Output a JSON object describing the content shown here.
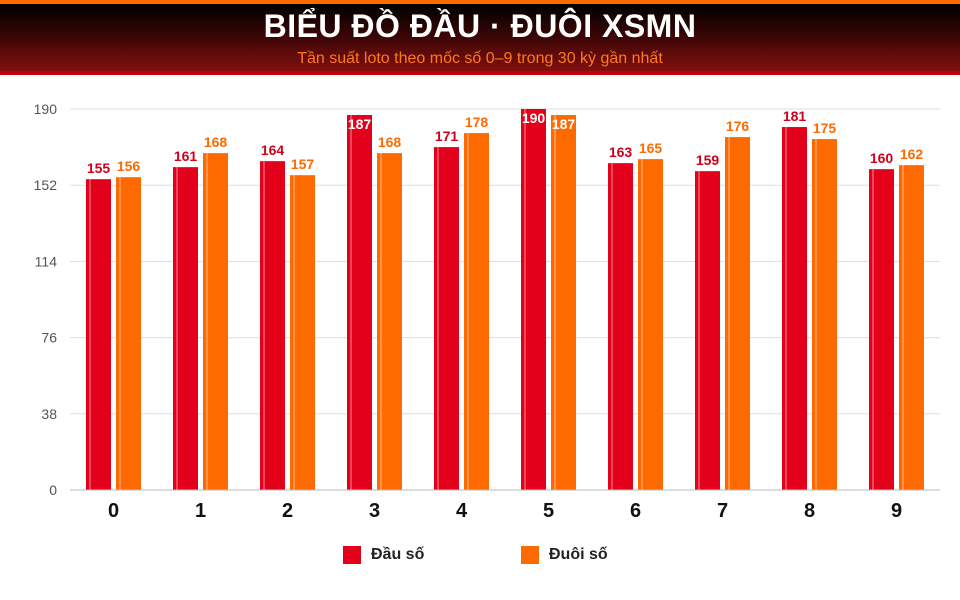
{
  "header": {
    "title": "BIỂU ĐỒ ĐẦU · ĐUÔI XSMN",
    "subtitle": "Tần suất loto theo mốc số 0–9 trong 30 kỳ gần nhất"
  },
  "chart_data": {
    "type": "bar",
    "categories": [
      "0",
      "1",
      "2",
      "3",
      "4",
      "5",
      "6",
      "7",
      "8",
      "9"
    ],
    "series": [
      {
        "name": "Đầu số",
        "color": "#e3001b",
        "label_color": "#d0001a",
        "values": [
          155,
          161,
          164,
          187,
          171,
          190,
          163,
          159,
          181,
          160
        ]
      },
      {
        "name": "Đuôi số",
        "color": "#ff6a00",
        "label_color": "#ff6a00",
        "values": [
          156,
          168,
          157,
          168,
          178,
          187,
          165,
          176,
          175,
          162
        ]
      }
    ],
    "yticks": [
      0,
      38,
      76,
      114,
      152,
      190
    ],
    "ylim": [
      0,
      190
    ],
    "grid": true,
    "legend_position": "bottom-center"
  }
}
